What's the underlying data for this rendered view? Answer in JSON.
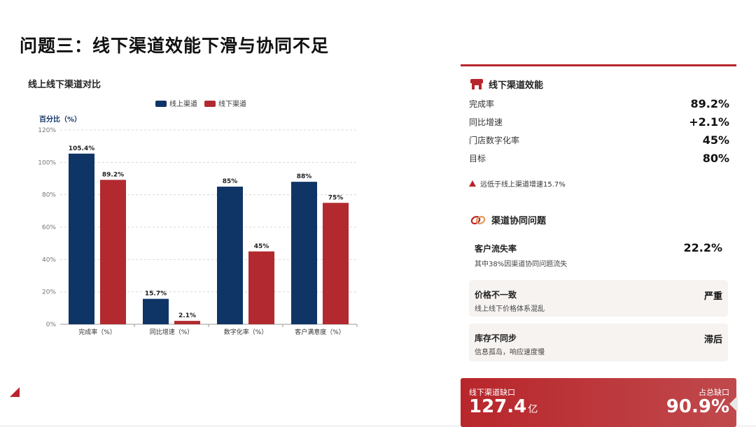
{
  "page": {
    "title": "问题三：线下渠道效能下滑与协同不足"
  },
  "chart": {
    "panel_title": "线上线下渠道对比",
    "legend": [
      {
        "name": "线上渠道",
        "color": "#0f3466"
      },
      {
        "name": "线下渠道",
        "color": "#b22a30"
      }
    ],
    "y_axis_label": "百分比（%）",
    "y_ticks": [
      "0%",
      "20%",
      "40%",
      "60%",
      "80%",
      "100%",
      "120%"
    ]
  },
  "chart_data": {
    "type": "bar",
    "title": "线上线下渠道对比",
    "categories": [
      "完成率（%）",
      "同比增速（%）",
      "数字化率（%）",
      "客户满意度（%）"
    ],
    "series": [
      {
        "name": "线上渠道",
        "values": [
          105.4,
          15.7,
          85,
          88
        ],
        "labels": [
          "105.4%",
          "15.7%",
          "85%",
          "88%"
        ]
      },
      {
        "name": "线下渠道",
        "values": [
          89.2,
          2.1,
          45,
          75
        ],
        "labels": [
          "89.2%",
          "2.1%",
          "45%",
          "75%"
        ]
      }
    ],
    "ylabel": "百分比（%）",
    "ylim": [
      0,
      120
    ],
    "grid": true,
    "legend_position": "top"
  },
  "offline_efficiency": {
    "title": "线下渠道效能",
    "metrics": [
      {
        "label": "完成率",
        "value": "89.2%"
      },
      {
        "label": "同比增速",
        "value": "+2.1%"
      },
      {
        "label": "门店数字化率",
        "value": "45%"
      },
      {
        "label": "目标",
        "value": "80%"
      }
    ],
    "warning": "远低于线上渠道增速15.7%"
  },
  "synergy": {
    "title": "渠道协同问题",
    "issues": [
      {
        "title": "客户流失率",
        "desc": "其中38%因渠道协同问题流失",
        "value": "22.2%"
      },
      {
        "title": "价格不一致",
        "desc": "线上线下价格体系混乱",
        "value": "严重"
      },
      {
        "title": "库存不同步",
        "desc": "信息孤岛，响应速度慢",
        "value": "滞后"
      }
    ]
  },
  "gap": {
    "left_label": "线下渠道缺口",
    "left_value": "127.4",
    "left_unit": "亿",
    "right_label": "占总缺口",
    "right_value": "90.9%"
  },
  "colors": {
    "accent_red": "#b8262b",
    "navy": "#0f3466",
    "card_bg": "#f6f3f1"
  },
  "icons": {
    "store": "store-icon",
    "link": "link-icon",
    "warning": "warning-icon"
  }
}
